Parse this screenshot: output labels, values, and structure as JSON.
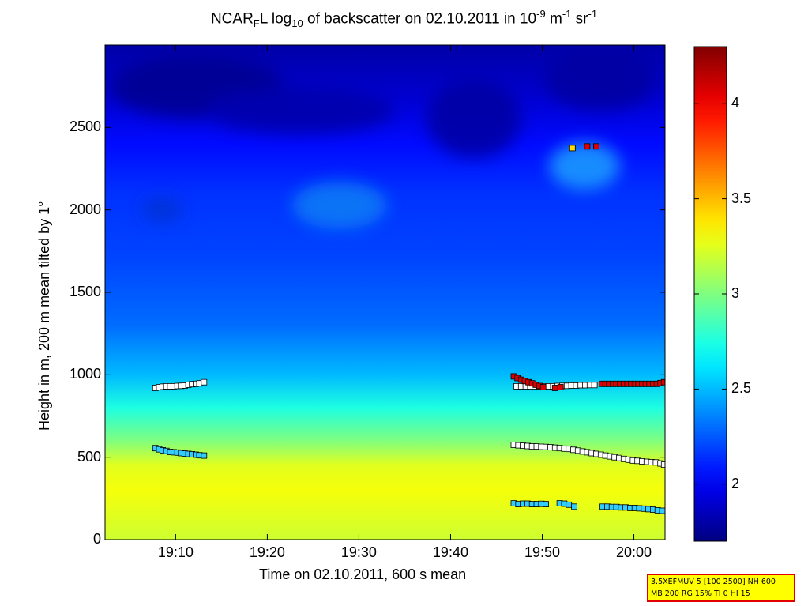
{
  "title": {
    "prefix": "NCAR",
    "sub1": "F",
    "mid": "L log",
    "sub2": "10",
    "text": " of backscatter on 02.10.2011 in 10",
    "sup1": "-9",
    "unit1": " m",
    "sup2": "-1",
    "unit2": " sr",
    "sup3": "-1"
  },
  "info_box": {
    "line1": "3.5XEFMUV 5 [100 2500] NH 600",
    "line2": "MB 200 RG 15% TI 0 HI 15"
  },
  "chart_data": {
    "type": "heatmap",
    "title": "NCAR_F L log10 of backscatter on 02.10.2011 in 10^-9 m^-1 sr^-1",
    "xlabel": "Time on 02.10.2011, 600 s mean",
    "ylabel": "Height in m, 200 m mean tilted by 1°",
    "x_unit": "minutes after 19:00",
    "xlim": [
      2.3,
      63.4
    ],
    "ylim": [
      0,
      3000
    ],
    "x_ticks": [
      {
        "value": 10,
        "label": "19:10"
      },
      {
        "value": 20,
        "label": "19:20"
      },
      {
        "value": 30,
        "label": "19:30"
      },
      {
        "value": 40,
        "label": "19:40"
      },
      {
        "value": 50,
        "label": "19:50"
      },
      {
        "value": 60,
        "label": "20:00"
      }
    ],
    "y_ticks": [
      0,
      500,
      1000,
      1500,
      2000,
      2500
    ],
    "colorbar": {
      "range": [
        1.7,
        4.3
      ],
      "ticks": [
        2,
        2.5,
        3,
        3.5,
        4
      ],
      "tick_labels": [
        "2",
        "2.5",
        "3",
        "3.5",
        "4"
      ],
      "colormap": "jet"
    },
    "background_profile": [
      {
        "height": 0,
        "value": 3.2
      },
      {
        "height": 300,
        "value": 3.3
      },
      {
        "height": 450,
        "value": 3.25
      },
      {
        "height": 600,
        "value": 3.0
      },
      {
        "height": 800,
        "value": 2.75
      },
      {
        "height": 1000,
        "value": 2.5
      },
      {
        "height": 1300,
        "value": 2.3
      },
      {
        "height": 1700,
        "value": 2.2
      },
      {
        "height": 2100,
        "value": 2.15
      },
      {
        "height": 2400,
        "value": 2.05
      },
      {
        "height": 2700,
        "value": 1.9
      },
      {
        "height": 3000,
        "value": 1.8
      }
    ],
    "series": [
      {
        "points": [
          [
            7.8,
            920
          ],
          [
            8.2,
            925
          ],
          [
            8.6,
            928
          ],
          [
            9.0,
            930
          ],
          [
            9.4,
            930
          ],
          [
            9.8,
            930
          ],
          [
            10.2,
            932
          ],
          [
            10.6,
            933
          ],
          [
            11.0,
            935
          ],
          [
            11.4,
            940
          ],
          [
            11.8,
            943
          ],
          [
            12.2,
            945
          ],
          [
            12.6,
            948
          ],
          [
            13.1,
            955
          ],
          [
            47.2,
            930
          ],
          [
            47.7,
            930
          ],
          [
            48.2,
            930
          ],
          [
            48.7,
            930
          ],
          [
            49.2,
            930
          ],
          [
            49.7,
            930
          ],
          [
            50.2,
            930
          ],
          [
            50.7,
            930
          ],
          [
            51.2,
            930
          ],
          [
            51.7,
            932
          ],
          [
            52.2,
            933
          ],
          [
            52.7,
            933
          ],
          [
            53.2,
            935
          ],
          [
            53.7,
            935
          ],
          [
            54.2,
            937
          ],
          [
            54.7,
            937
          ],
          [
            55.2,
            938
          ],
          [
            55.7,
            938
          ]
        ],
        "marker_color": "#ffffff"
      },
      {
        "points": [
          [
            7.8,
            555
          ],
          [
            8.2,
            548
          ],
          [
            8.6,
            542
          ],
          [
            9.0,
            538
          ],
          [
            9.4,
            532
          ],
          [
            9.8,
            530
          ],
          [
            10.2,
            528
          ],
          [
            10.6,
            525
          ],
          [
            11.0,
            522
          ],
          [
            11.4,
            520
          ],
          [
            11.8,
            518
          ],
          [
            12.2,
            515
          ],
          [
            12.6,
            512
          ],
          [
            13.1,
            510
          ],
          [
            46.9,
            220
          ],
          [
            47.4,
            215
          ],
          [
            47.9,
            218
          ],
          [
            48.4,
            218
          ],
          [
            48.9,
            215
          ],
          [
            49.4,
            215
          ],
          [
            49.9,
            217
          ],
          [
            50.4,
            215
          ],
          [
            51.9,
            220
          ],
          [
            52.4,
            218
          ],
          [
            52.9,
            212
          ],
          [
            53.5,
            200
          ],
          [
            56.6,
            200
          ],
          [
            57.1,
            200
          ],
          [
            57.6,
            198
          ],
          [
            58.1,
            198
          ],
          [
            58.6,
            195
          ],
          [
            59.1,
            195
          ],
          [
            59.6,
            192
          ],
          [
            60.1,
            192
          ],
          [
            60.6,
            190
          ],
          [
            61.1,
            188
          ],
          [
            61.6,
            185
          ],
          [
            62.1,
            182
          ],
          [
            62.6,
            178
          ],
          [
            63.1,
            175
          ]
        ],
        "marker_color": "#33ccff"
      },
      {
        "points": [
          [
            46.9,
            575
          ],
          [
            47.4,
            572
          ],
          [
            47.9,
            570
          ],
          [
            48.4,
            568
          ],
          [
            48.9,
            565
          ],
          [
            49.4,
            565
          ],
          [
            49.9,
            563
          ],
          [
            50.4,
            562
          ],
          [
            50.9,
            560
          ],
          [
            51.4,
            558
          ],
          [
            51.9,
            555
          ],
          [
            52.4,
            552
          ],
          [
            52.9,
            550
          ],
          [
            53.4,
            545
          ],
          [
            53.9,
            540
          ],
          [
            54.4,
            535
          ],
          [
            54.9,
            530
          ],
          [
            55.4,
            525
          ],
          [
            55.9,
            520
          ],
          [
            56.4,
            515
          ],
          [
            56.9,
            510
          ],
          [
            57.4,
            505
          ],
          [
            57.9,
            500
          ],
          [
            58.4,
            495
          ],
          [
            58.9,
            490
          ],
          [
            59.4,
            485
          ],
          [
            59.9,
            480
          ],
          [
            60.4,
            478
          ],
          [
            60.9,
            475
          ],
          [
            61.4,
            472
          ],
          [
            61.9,
            470
          ],
          [
            62.4,
            468
          ],
          [
            62.9,
            462
          ],
          [
            63.3,
            455
          ]
        ],
        "marker_color": "#ffffff"
      },
      {
        "points": [
          [
            46.9,
            990
          ],
          [
            47.3,
            980
          ],
          [
            47.7,
            970
          ],
          [
            48.1,
            962
          ],
          [
            48.5,
            955
          ],
          [
            48.9,
            948
          ],
          [
            49.3,
            940
          ],
          [
            49.7,
            932
          ],
          [
            50.1,
            925
          ],
          [
            51.4,
            920
          ],
          [
            52.0,
            925
          ],
          [
            56.5,
            945
          ],
          [
            56.9,
            945
          ],
          [
            57.3,
            945
          ],
          [
            57.7,
            945
          ],
          [
            58.1,
            945
          ],
          [
            58.5,
            945
          ],
          [
            58.9,
            945
          ],
          [
            59.3,
            945
          ],
          [
            59.7,
            945
          ],
          [
            60.1,
            945
          ],
          [
            60.5,
            945
          ],
          [
            60.9,
            945
          ],
          [
            61.3,
            945
          ],
          [
            61.7,
            945
          ],
          [
            62.1,
            945
          ],
          [
            62.5,
            945
          ],
          [
            62.9,
            950
          ],
          [
            63.3,
            955
          ],
          [
            54.9,
            2385
          ],
          [
            55.9,
            2385
          ]
        ],
        "marker_color": "#dd0000"
      },
      {
        "points": [
          [
            53.3,
            2375
          ]
        ],
        "marker_color": "#ffdd00"
      }
    ]
  }
}
